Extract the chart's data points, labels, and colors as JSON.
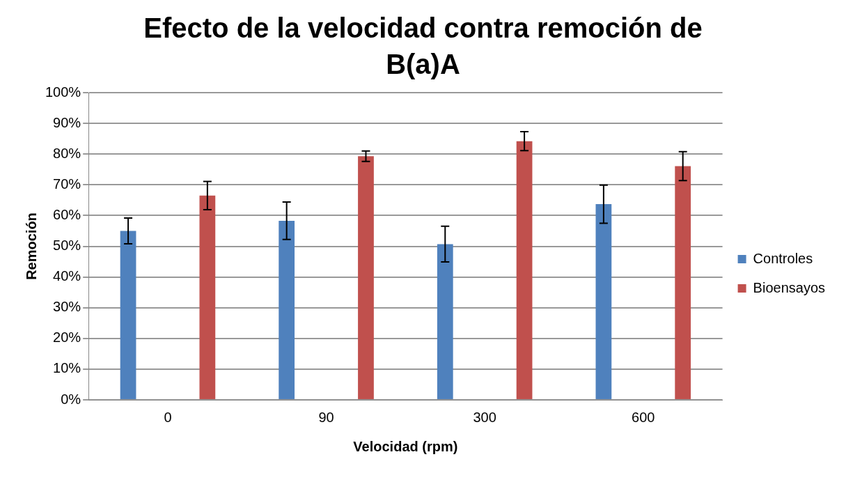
{
  "chart_data": {
    "type": "bar",
    "title": "Efecto de la velocidad contra remoción de B(a)A",
    "xlabel": "Velocidad (rpm)",
    "ylabel": "Remoción",
    "categories": [
      "0",
      "90",
      "300",
      "600"
    ],
    "series": [
      {
        "name": "Controles",
        "color": "#4f81bd",
        "values": [
          55.0,
          58.3,
          50.7,
          63.7
        ],
        "errors": [
          4.2,
          6.1,
          5.8,
          6.2
        ]
      },
      {
        "name": "Bioensayos",
        "color": "#c0504d",
        "values": [
          66.5,
          79.3,
          84.2,
          76.1
        ],
        "errors": [
          4.6,
          1.7,
          3.1,
          4.7
        ]
      }
    ],
    "ylim": [
      0,
      100
    ],
    "yticks": [
      {
        "value": 0,
        "label": "0%"
      },
      {
        "value": 10,
        "label": "10%"
      },
      {
        "value": 20,
        "label": "20%"
      },
      {
        "value": 30,
        "label": "30%"
      },
      {
        "value": 40,
        "label": "40%"
      },
      {
        "value": 50,
        "label": "50%"
      },
      {
        "value": 60,
        "label": "60%"
      },
      {
        "value": 70,
        "label": "70%"
      },
      {
        "value": 80,
        "label": "80%"
      },
      {
        "value": 90,
        "label": "90%"
      },
      {
        "value": 100,
        "label": "100%"
      }
    ],
    "grid": "y",
    "legend": "right"
  }
}
